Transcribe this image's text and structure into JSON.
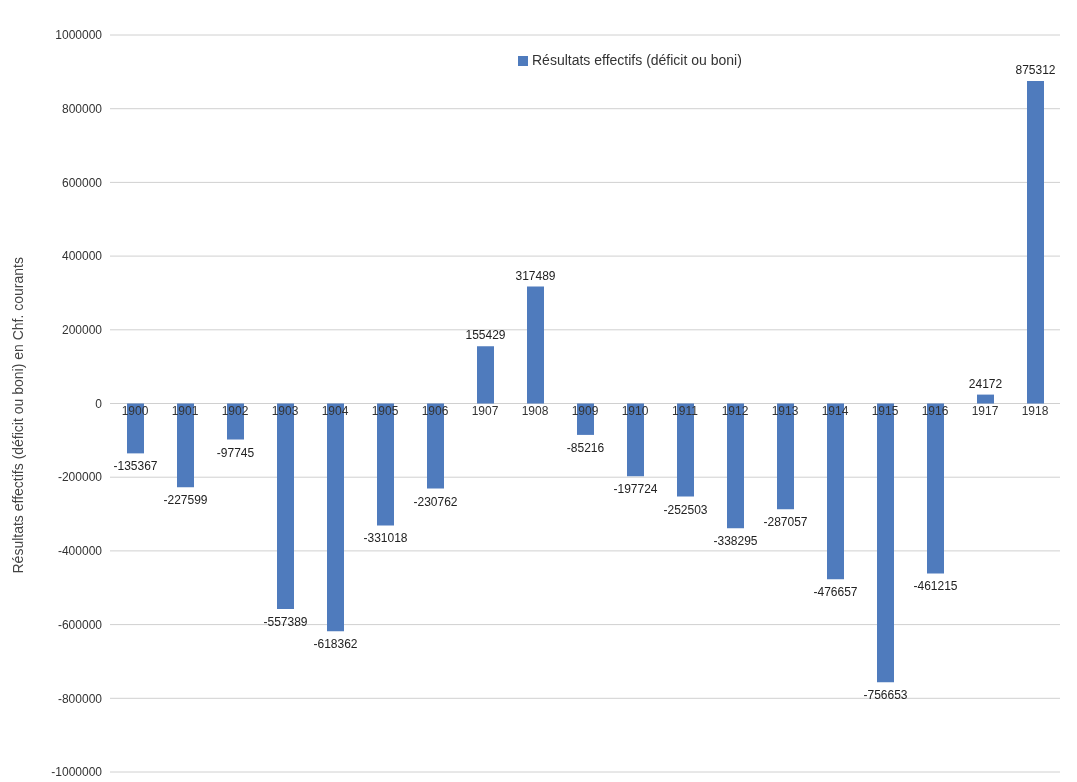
{
  "chart_data": {
    "type": "bar",
    "ylabel": "Résultats effectifs (déficit ou boni) en Chf. courants",
    "categories": [
      "1900",
      "1901",
      "1902",
      "1903",
      "1904",
      "1905",
      "1906",
      "1907",
      "1908",
      "1909",
      "1910",
      "1911",
      "1912",
      "1913",
      "1914",
      "1915",
      "1916",
      "1917",
      "1918"
    ],
    "series": [
      {
        "name": "Résultats effectifs (déficit ou boni)",
        "color": "#4f7bbd",
        "values": [
          -135367,
          -227599,
          -97745,
          -557389,
          -618362,
          -331018,
          -230762,
          155429,
          317489,
          -85216,
          -197724,
          -252503,
          -338295,
          -287057,
          -476657,
          -756653,
          -461215,
          24172,
          875312
        ]
      }
    ],
    "ylim": [
      -1000000,
      1000000
    ],
    "yticks": [
      -1000000,
      -800000,
      -600000,
      -400000,
      -200000,
      0,
      200000,
      400000,
      600000,
      800000,
      1000000
    ],
    "grid": "y",
    "legend": "top",
    "data_labels": true
  }
}
